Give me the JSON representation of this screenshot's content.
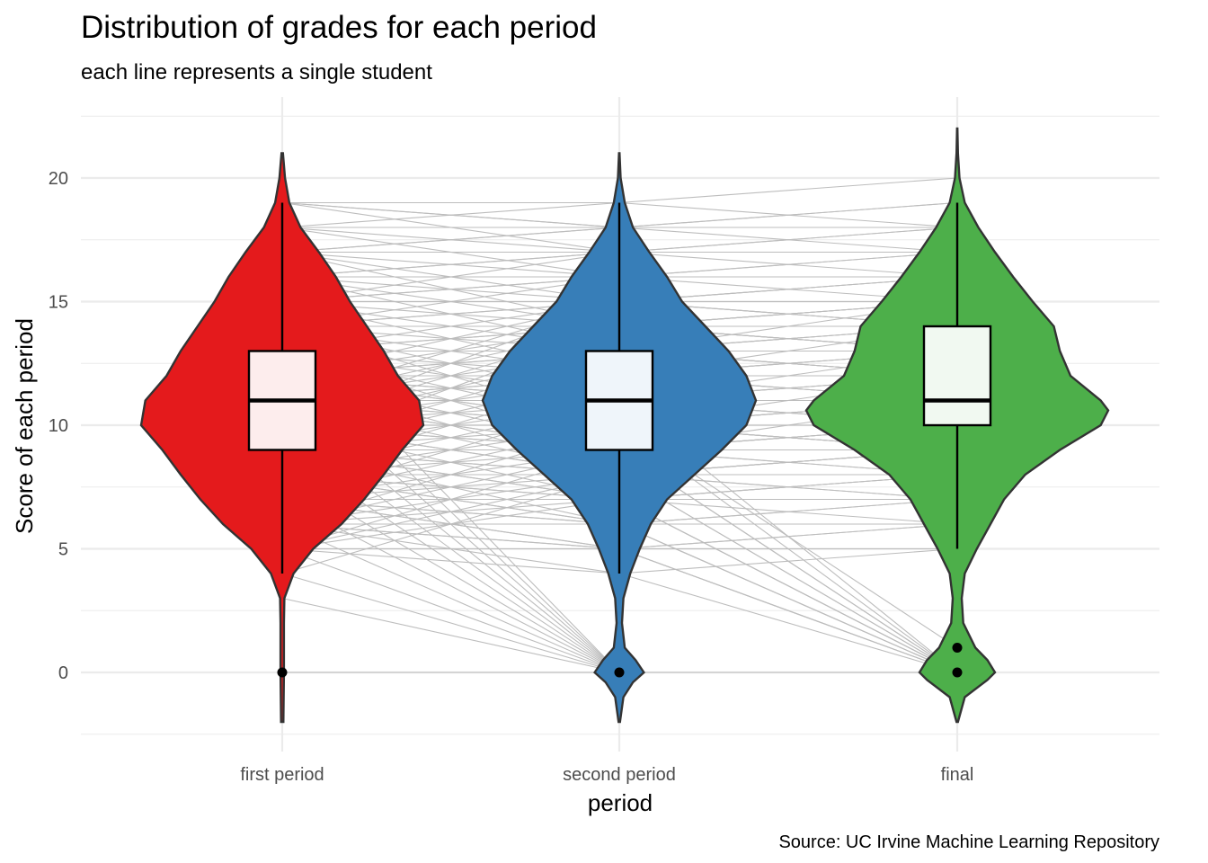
{
  "chart_data": {
    "type": "violin",
    "title": "Distribution of grades for each period",
    "subtitle": "each line represents a single student",
    "xlabel": "period",
    "ylabel": "Score of each period",
    "caption": "Source: UC Irvine Machine Learning Repository",
    "ylim": [
      -2.5,
      22.5
    ],
    "yticks": [
      0,
      5,
      10,
      15,
      20
    ],
    "grid": true,
    "categories": [
      "first period",
      "second period",
      "final"
    ],
    "groups": [
      {
        "name": "first period",
        "color": "#e41a1c",
        "range": [
          -2,
          21
        ],
        "box": {
          "q1": 9,
          "median": 11,
          "q3": 13,
          "whisker_low": 4,
          "whisker_high": 19
        },
        "outliers": [
          0
        ],
        "density": [
          [
            -2,
            0.008
          ],
          [
            -1,
            0.01
          ],
          [
            0,
            0.012
          ],
          [
            1,
            0.012
          ],
          [
            2,
            0.012
          ],
          [
            3,
            0.015
          ],
          [
            4,
            0.08
          ],
          [
            5,
            0.22
          ],
          [
            6,
            0.42
          ],
          [
            7,
            0.58
          ],
          [
            8,
            0.72
          ],
          [
            9,
            0.85
          ],
          [
            10,
            1.0
          ],
          [
            11,
            0.97
          ],
          [
            12,
            0.82
          ],
          [
            13,
            0.72
          ],
          [
            14,
            0.6
          ],
          [
            15,
            0.48
          ],
          [
            16,
            0.38
          ],
          [
            17,
            0.26
          ],
          [
            18,
            0.13
          ],
          [
            19,
            0.05
          ],
          [
            20,
            0.02
          ],
          [
            21,
            0.005
          ]
        ]
      },
      {
        "name": "second period",
        "color": "#377eb8",
        "range": [
          -2,
          21
        ],
        "box": {
          "q1": 9,
          "median": 11,
          "q3": 13,
          "whisker_low": 4,
          "whisker_high": 19
        },
        "outliers": [
          0
        ],
        "density": [
          [
            -2,
            0.005
          ],
          [
            -1,
            0.03
          ],
          [
            -0.4,
            0.1
          ],
          [
            0,
            0.18
          ],
          [
            0.5,
            0.12
          ],
          [
            1,
            0.04
          ],
          [
            2,
            0.02
          ],
          [
            3,
            0.03
          ],
          [
            4,
            0.08
          ],
          [
            5,
            0.15
          ],
          [
            6,
            0.23
          ],
          [
            7,
            0.35
          ],
          [
            8,
            0.55
          ],
          [
            9,
            0.75
          ],
          [
            10,
            0.93
          ],
          [
            11,
            1.0
          ],
          [
            12,
            0.93
          ],
          [
            13,
            0.8
          ],
          [
            14,
            0.63
          ],
          [
            15,
            0.46
          ],
          [
            16,
            0.35
          ],
          [
            17,
            0.22
          ],
          [
            18,
            0.1
          ],
          [
            19,
            0.04
          ],
          [
            20,
            0.01
          ],
          [
            21,
            0.002
          ]
        ]
      },
      {
        "name": "final",
        "color": "#4daf4a",
        "range": [
          -2,
          22
        ],
        "box": {
          "q1": 10,
          "median": 11,
          "q3": 14,
          "whisker_low": 5,
          "whisker_high": 19
        },
        "outliers": [
          0,
          1
        ],
        "density": [
          [
            -2,
            0.005
          ],
          [
            -1,
            0.05
          ],
          [
            -0.3,
            0.2
          ],
          [
            0,
            0.25
          ],
          [
            0.5,
            0.2
          ],
          [
            1,
            0.12
          ],
          [
            2,
            0.04
          ],
          [
            3,
            0.03
          ],
          [
            4,
            0.05
          ],
          [
            5,
            0.13
          ],
          [
            6,
            0.22
          ],
          [
            7,
            0.31
          ],
          [
            8,
            0.45
          ],
          [
            9,
            0.68
          ],
          [
            10,
            0.95
          ],
          [
            10.6,
            1.0
          ],
          [
            11,
            0.95
          ],
          [
            12,
            0.75
          ],
          [
            13,
            0.68
          ],
          [
            14,
            0.64
          ],
          [
            15,
            0.5
          ],
          [
            16,
            0.37
          ],
          [
            17,
            0.25
          ],
          [
            18,
            0.14
          ],
          [
            19,
            0.05
          ],
          [
            20,
            0.015
          ],
          [
            21,
            0.005
          ],
          [
            22,
            0.001
          ]
        ]
      }
    ],
    "student_lines": [
      [
        19,
        19,
        20
      ],
      [
        18,
        18,
        19
      ],
      [
        17,
        17,
        18
      ],
      [
        16,
        16,
        17
      ],
      [
        15,
        15,
        16
      ],
      [
        14,
        14,
        15
      ],
      [
        13,
        13,
        14
      ],
      [
        12,
        12,
        13
      ],
      [
        11,
        11,
        12
      ],
      [
        10,
        10,
        11
      ],
      [
        9,
        9,
        10
      ],
      [
        8,
        8,
        9
      ],
      [
        7,
        7,
        8
      ],
      [
        6,
        6,
        7
      ],
      [
        5,
        5,
        6
      ],
      [
        19,
        18,
        18
      ],
      [
        18,
        17,
        17
      ],
      [
        17,
        16,
        16
      ],
      [
        16,
        15,
        15
      ],
      [
        15,
        14,
        14
      ],
      [
        14,
        13,
        13
      ],
      [
        13,
        12,
        12
      ],
      [
        12,
        11,
        11
      ],
      [
        11,
        10,
        10
      ],
      [
        10,
        9,
        9
      ],
      [
        9,
        8,
        8
      ],
      [
        8,
        7,
        7
      ],
      [
        7,
        6,
        6
      ],
      [
        6,
        5,
        5
      ],
      [
        5,
        4,
        5
      ],
      [
        18,
        19,
        18
      ],
      [
        17,
        18,
        17
      ],
      [
        16,
        17,
        16
      ],
      [
        15,
        16,
        15
      ],
      [
        14,
        15,
        14
      ],
      [
        13,
        14,
        13
      ],
      [
        12,
        13,
        12
      ],
      [
        11,
        12,
        11
      ],
      [
        10,
        11,
        10
      ],
      [
        9,
        10,
        9
      ],
      [
        8,
        9,
        8
      ],
      [
        7,
        8,
        7
      ],
      [
        6,
        7,
        6
      ],
      [
        13,
        11,
        12
      ],
      [
        12,
        10,
        11
      ],
      [
        11,
        9,
        10
      ],
      [
        10,
        8,
        9
      ],
      [
        9,
        7,
        8
      ],
      [
        8,
        6,
        7
      ],
      [
        7,
        5,
        6
      ],
      [
        11,
        13,
        14
      ],
      [
        10,
        12,
        13
      ],
      [
        9,
        11,
        12
      ],
      [
        12,
        14,
        15
      ],
      [
        14,
        12,
        13
      ],
      [
        15,
        13,
        12
      ],
      [
        16,
        14,
        13
      ],
      [
        17,
        15,
        14
      ],
      [
        11,
        14,
        13
      ],
      [
        10,
        13,
        12
      ],
      [
        9,
        12,
        11
      ],
      [
        8,
        11,
        10
      ],
      [
        7,
        10,
        9
      ],
      [
        6,
        9,
        8
      ],
      [
        5,
        8,
        7
      ],
      [
        12,
        9,
        10
      ],
      [
        13,
        10,
        11
      ],
      [
        14,
        11,
        10
      ],
      [
        15,
        12,
        11
      ],
      [
        16,
        13,
        12
      ],
      [
        17,
        14,
        15
      ],
      [
        18,
        16,
        16
      ],
      [
        19,
        17,
        17
      ],
      [
        10,
        15,
        14
      ],
      [
        9,
        14,
        13
      ],
      [
        11,
        8,
        9
      ],
      [
        12,
        8,
        8
      ],
      [
        13,
        9,
        9
      ],
      [
        14,
        10,
        9
      ],
      [
        8,
        12,
        12
      ],
      [
        7,
        11,
        11
      ],
      [
        6,
        10,
        10
      ],
      [
        5,
        9,
        9
      ],
      [
        4,
        8,
        8
      ],
      [
        7,
        9,
        10
      ],
      [
        6,
        8,
        9
      ],
      [
        5,
        7,
        8
      ],
      [
        13,
        15,
        16
      ],
      [
        14,
        16,
        17
      ],
      [
        15,
        17,
        18
      ],
      [
        12,
        15,
        16
      ],
      [
        11,
        15,
        15
      ],
      [
        10,
        14,
        15
      ],
      [
        9,
        13,
        14
      ],
      [
        8,
        10,
        11
      ],
      [
        12,
        12,
        14
      ],
      [
        11,
        11,
        13
      ],
      [
        10,
        10,
        12
      ],
      [
        9,
        9,
        11
      ],
      [
        13,
        13,
        15
      ],
      [
        11,
        0,
        0
      ],
      [
        10,
        0,
        0
      ],
      [
        9,
        0,
        0
      ],
      [
        8,
        0,
        0
      ],
      [
        7,
        0,
        0
      ],
      [
        6,
        0,
        0
      ],
      [
        5,
        0,
        0
      ],
      [
        12,
        0,
        0
      ],
      [
        13,
        0,
        0
      ],
      [
        14,
        0,
        0
      ],
      [
        8,
        7,
        0
      ],
      [
        9,
        8,
        0
      ],
      [
        10,
        9,
        0
      ],
      [
        7,
        6,
        0
      ],
      [
        6,
        5,
        0
      ],
      [
        11,
        9,
        0
      ],
      [
        10,
        8,
        0
      ],
      [
        9,
        7,
        0
      ],
      [
        12,
        10,
        0
      ],
      [
        8,
        6,
        0
      ],
      [
        7,
        5,
        0
      ],
      [
        6,
        4,
        0
      ],
      [
        5,
        5,
        0
      ],
      [
        11,
        10,
        1
      ],
      [
        9,
        6,
        0
      ],
      [
        10,
        7,
        0
      ],
      [
        0,
        0,
        0
      ],
      [
        4,
        0,
        0
      ],
      [
        3,
        0,
        0
      ],
      [
        12,
        11,
        0
      ],
      [
        10,
        10,
        9
      ],
      [
        11,
        12,
        12
      ],
      [
        12,
        13,
        13
      ],
      [
        13,
        14,
        14
      ],
      [
        14,
        15,
        15
      ],
      [
        15,
        16,
        16
      ],
      [
        16,
        17,
        17
      ],
      [
        17,
        18,
        18
      ],
      [
        18,
        18,
        18
      ],
      [
        19,
        18,
        19
      ]
    ]
  }
}
